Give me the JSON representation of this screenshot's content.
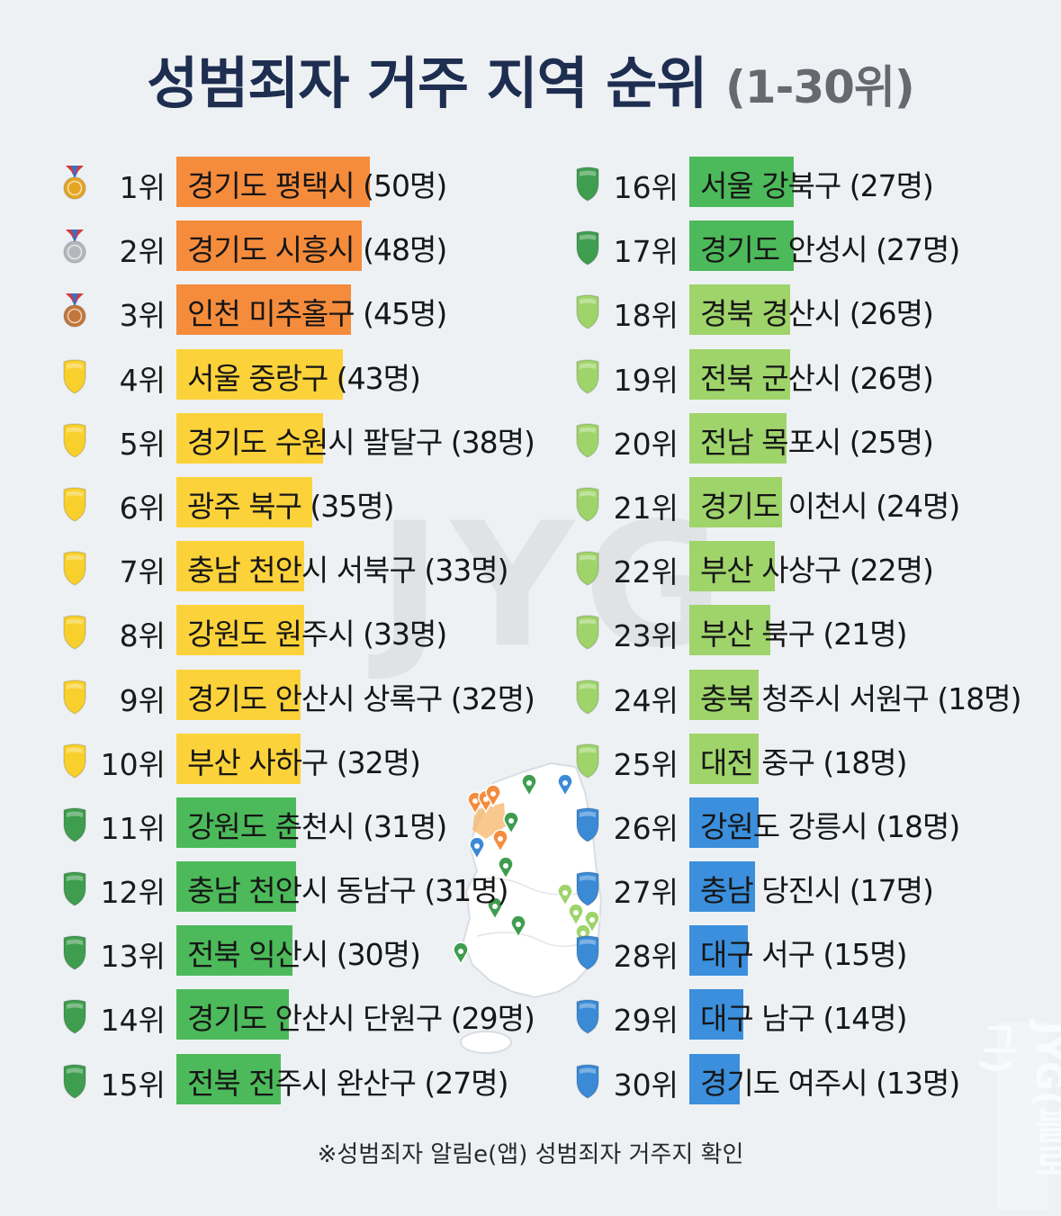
{
  "title": {
    "main": "성범죄자 거주 지역 순위",
    "sub": "(1-30위)"
  },
  "footnote": "※성범죄자 알림e(앱) 성범죄자 거주지 확인",
  "watermark": "JYG",
  "side_watermark": "JYG(블로그)",
  "colors": {
    "orange": "#f58c3c",
    "yellow": "#fcd23a",
    "green": "#4cba5a",
    "light_green": "#9fd46b",
    "blue": "#3b8fdc",
    "gold": "#e5a623",
    "silver": "#b4b8bc",
    "bronze": "#c2773b",
    "yellow_shield": "#f8d02c",
    "green_shield": "#3f9d4f",
    "light_green_shield": "#9fd46b",
    "blue_shield": "#3a8ad6"
  },
  "chart_data": {
    "type": "bar",
    "unit": "명",
    "xlim": [
      0,
      50
    ],
    "categories": [
      "경기도 평택시",
      "경기도 시흥시",
      "인천 미추홀구",
      "서울 중랑구",
      "경기도 수원시 팔달구",
      "광주 북구",
      "충남 천안시 서북구",
      "강원도 원주시",
      "경기도 안산시 상록구",
      "부산 사하구",
      "강원도 춘천시",
      "충남 천안시 동남구",
      "전북 익산시",
      "경기도 안산시 단원구",
      "전북 전주시 완산구",
      "서울 강북구",
      "경기도 안성시",
      "경북 경산시",
      "전북 군산시",
      "전남 목포시",
      "경기도 이천시",
      "부산 사상구",
      "부산 북구",
      "충북 청주시 서원구",
      "대전 중구",
      "강원도 강릉시",
      "충남 당진시",
      "대구 서구",
      "대구 남구",
      "경기도 여주시"
    ],
    "values": [
      50,
      48,
      45,
      43,
      38,
      35,
      33,
      33,
      32,
      32,
      31,
      31,
      30,
      29,
      27,
      27,
      27,
      26,
      26,
      25,
      24,
      22,
      21,
      18,
      18,
      18,
      17,
      15,
      14,
      13
    ],
    "rows": [
      {
        "rank": "1위",
        "region": "경기도 평택시",
        "count": "(50명)",
        "value": 50,
        "color": "orange",
        "icon": "gold-medal-icon"
      },
      {
        "rank": "2위",
        "region": "경기도 시흥시",
        "count": "(48명)",
        "value": 48,
        "color": "orange",
        "icon": "silver-medal-icon"
      },
      {
        "rank": "3위",
        "region": "인천 미추홀구",
        "count": "(45명)",
        "value": 45,
        "color": "orange",
        "icon": "bronze-medal-icon"
      },
      {
        "rank": "4위",
        "region": "서울 중랑구",
        "count": "(43명)",
        "value": 43,
        "color": "yellow",
        "icon": "yellow-shield-icon"
      },
      {
        "rank": "5위",
        "region": "경기도 수원시 팔달구",
        "count": "(38명)",
        "value": 38,
        "color": "yellow",
        "icon": "yellow-shield-icon"
      },
      {
        "rank": "6위",
        "region": "광주 북구",
        "count": "(35명)",
        "value": 35,
        "color": "yellow",
        "icon": "yellow-shield-icon"
      },
      {
        "rank": "7위",
        "region": "충남 천안시 서북구",
        "count": "(33명)",
        "value": 33,
        "color": "yellow",
        "icon": "yellow-shield-icon"
      },
      {
        "rank": "8위",
        "region": "강원도 원주시",
        "count": "(33명)",
        "value": 33,
        "color": "yellow",
        "icon": "yellow-shield-icon"
      },
      {
        "rank": "9위",
        "region": "경기도 안산시 상록구",
        "count": "(32명)",
        "value": 32,
        "color": "yellow",
        "icon": "yellow-shield-icon"
      },
      {
        "rank": "10위",
        "region": "부산 사하구",
        "count": "(32명)",
        "value": 32,
        "color": "yellow",
        "icon": "yellow-shield-icon"
      },
      {
        "rank": "11위",
        "region": "강원도 춘천시",
        "count": "(31명)",
        "value": 31,
        "color": "green",
        "icon": "green-shield-icon"
      },
      {
        "rank": "12위",
        "region": "충남 천안시 동남구",
        "count": "(31명)",
        "value": 31,
        "color": "green",
        "icon": "green-shield-icon"
      },
      {
        "rank": "13위",
        "region": "전북 익산시",
        "count": "(30명)",
        "value": 30,
        "color": "green",
        "icon": "green-shield-icon"
      },
      {
        "rank": "14위",
        "region": "경기도 안산시 단원구",
        "count": "(29명)",
        "value": 29,
        "color": "green",
        "icon": "green-shield-icon"
      },
      {
        "rank": "15위",
        "region": "전북 전주시 완산구",
        "count": "(27명)",
        "value": 27,
        "color": "green",
        "icon": "green-shield-icon"
      },
      {
        "rank": "16위",
        "region": "서울 강북구",
        "count": "(27명)",
        "value": 27,
        "color": "green",
        "icon": "green-shield-icon"
      },
      {
        "rank": "17위",
        "region": "경기도 안성시",
        "count": "(27명)",
        "value": 27,
        "color": "green",
        "icon": "green-shield-icon"
      },
      {
        "rank": "18위",
        "region": "경북 경산시",
        "count": "(26명)",
        "value": 26,
        "color": "light_green",
        "icon": "light-green-shield-icon"
      },
      {
        "rank": "19위",
        "region": "전북 군산시",
        "count": "(26명)",
        "value": 26,
        "color": "light_green",
        "icon": "light-green-shield-icon"
      },
      {
        "rank": "20위",
        "region": "전남 목포시",
        "count": "(25명)",
        "value": 25,
        "color": "light_green",
        "icon": "light-green-shield-icon"
      },
      {
        "rank": "21위",
        "region": "경기도 이천시",
        "count": "(24명)",
        "value": 24,
        "color": "light_green",
        "icon": "light-green-shield-icon"
      },
      {
        "rank": "22위",
        "region": "부산 사상구",
        "count": "(22명)",
        "value": 22,
        "color": "light_green",
        "icon": "light-green-shield-icon"
      },
      {
        "rank": "23위",
        "region": "부산 북구",
        "count": "(21명)",
        "value": 21,
        "color": "light_green",
        "icon": "light-green-shield-icon"
      },
      {
        "rank": "24위",
        "region": "충북 청주시 서원구",
        "count": "(18명)",
        "value": 18,
        "color": "light_green",
        "icon": "light-green-shield-icon"
      },
      {
        "rank": "25위",
        "region": "대전 중구",
        "count": "(18명)",
        "value": 18,
        "color": "light_green",
        "icon": "light-green-shield-icon"
      },
      {
        "rank": "26위",
        "region": "강원도 강릉시",
        "count": "(18명)",
        "value": 18,
        "color": "blue",
        "icon": "blue-shield-icon"
      },
      {
        "rank": "27위",
        "region": "충남 당진시",
        "count": "(17명)",
        "value": 17,
        "color": "blue",
        "icon": "blue-shield-icon"
      },
      {
        "rank": "28위",
        "region": "대구 서구",
        "count": "(15명)",
        "value": 15,
        "color": "blue",
        "icon": "blue-shield-icon"
      },
      {
        "rank": "29위",
        "region": "대구 남구",
        "count": "(14명)",
        "value": 14,
        "color": "blue",
        "icon": "blue-shield-icon"
      },
      {
        "rank": "30위",
        "region": "경기도 여주시",
        "count": "(13명)",
        "value": 13,
        "color": "blue",
        "icon": "blue-shield-icon"
      }
    ]
  }
}
